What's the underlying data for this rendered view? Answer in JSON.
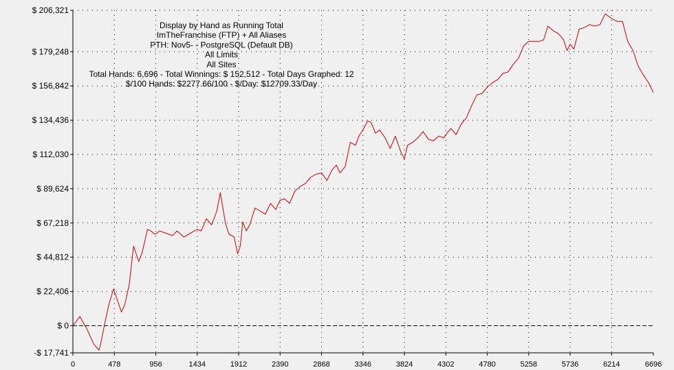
{
  "colors": {
    "background": "#f0f0f0",
    "axis": "#000000",
    "grid": "#000000",
    "series": "#cc0000"
  },
  "chart_data": {
    "type": "line",
    "title_lines": [
      "Display by Hand as Running Total",
      "ImTheFranchise (FTP) + All Aliases",
      "PTH: Nov5- - PostgreSQL (Default DB)",
      "All Limits",
      "All Sites",
      "Total Hands: 6,696 - Total Winnings: $ 152,512 - Total Days Graphed: 12",
      "$/100 Hands: $2277.66/100 - $/Day: $12709.33/Day"
    ],
    "xlabel": "",
    "ylabel": "",
    "xlim": [
      0,
      6696
    ],
    "ylim": [
      -17741,
      206321
    ],
    "x_ticks": [
      0,
      478,
      956,
      1434,
      1912,
      2390,
      2868,
      3346,
      3824,
      4302,
      4780,
      5258,
      5736,
      6214,
      6696
    ],
    "x_tick_labels": [
      "0",
      "478",
      "956",
      "1434",
      "1912",
      "2390",
      "2868",
      "3346",
      "3824",
      "4302",
      "4780",
      "5258",
      "5736",
      "6214",
      "6696"
    ],
    "y_ticks": [
      206321,
      179248,
      156842,
      134436,
      112030,
      89624,
      67218,
      44812,
      22406,
      0,
      -17741
    ],
    "y_tick_labels": [
      "$ 206,321",
      "$ 179,248",
      "$ 156,842",
      "$ 134,436",
      "$ 112,030",
      "$ 89,624",
      "$ 67,218",
      "$ 44,812",
      "$ 22,406",
      "$ 0",
      "-$ 17,741"
    ],
    "grid": true,
    "series": [
      {
        "x": [
          0,
          80,
          160,
          240,
          300,
          320,
          380,
          420,
          470,
          480,
          560,
          600,
          650,
          700,
          760,
          800,
          860,
          900,
          940,
          956,
          1000,
          1050,
          1100,
          1150,
          1200,
          1280,
          1340,
          1400,
          1434,
          1480,
          1540,
          1600,
          1660,
          1700,
          1760,
          1800,
          1860,
          1900,
          1930,
          1960,
          2000,
          2040,
          2100,
          2160,
          2220,
          2280,
          2340,
          2390,
          2440,
          2500,
          2560,
          2620,
          2680,
          2740,
          2800,
          2868,
          2930,
          2990,
          3040,
          3080,
          3140,
          3200,
          3260,
          3300,
          3346,
          3400,
          3440,
          3490,
          3540,
          3600,
          3660,
          3720,
          3780,
          3824,
          3860,
          3920,
          3980,
          4040,
          4100,
          4160,
          4220,
          4280,
          4302,
          4360,
          4420,
          4480,
          4540,
          4600,
          4660,
          4720,
          4780,
          4840,
          4900,
          4960,
          5020,
          5080,
          5140,
          5200,
          5258,
          5320,
          5380,
          5430,
          5480,
          5540,
          5600,
          5660,
          5700,
          5736,
          5780,
          5840,
          5900,
          5960,
          6020,
          6080,
          6140,
          6214,
          6280,
          6340,
          6400,
          6460,
          6520,
          6580,
          6640,
          6696
        ],
        "y": [
          0,
          6000,
          -2000,
          -12000,
          -16000,
          -12000,
          5000,
          15000,
          24000,
          22000,
          9000,
          14000,
          27000,
          52000,
          42000,
          48000,
          63000,
          62000,
          60000,
          60000,
          62000,
          61000,
          60000,
          59000,
          62000,
          58000,
          60000,
          62000,
          63000,
          62000,
          70000,
          66000,
          75000,
          87000,
          67000,
          60000,
          58000,
          47000,
          52000,
          68000,
          62000,
          66000,
          77000,
          75000,
          73000,
          80000,
          76000,
          82000,
          83000,
          80000,
          88000,
          91000,
          93000,
          97000,
          99000,
          100000,
          95000,
          102000,
          105000,
          100000,
          104000,
          120000,
          118000,
          124000,
          128000,
          134000,
          133000,
          126000,
          128000,
          123000,
          116000,
          124000,
          114000,
          109000,
          118000,
          120000,
          123000,
          127000,
          122000,
          121000,
          124000,
          123000,
          125000,
          129000,
          125000,
          132000,
          136000,
          144000,
          151000,
          152000,
          156000,
          159000,
          161000,
          165000,
          166000,
          171000,
          175000,
          183000,
          186000,
          186000,
          186000,
          187000,
          196000,
          193000,
          191000,
          187000,
          180000,
          184000,
          181000,
          194000,
          195000,
          197000,
          196000,
          197000,
          204000,
          201000,
          199000,
          199000,
          186000,
          180000,
          170000,
          164000,
          159000,
          152512
        ]
      }
    ]
  }
}
